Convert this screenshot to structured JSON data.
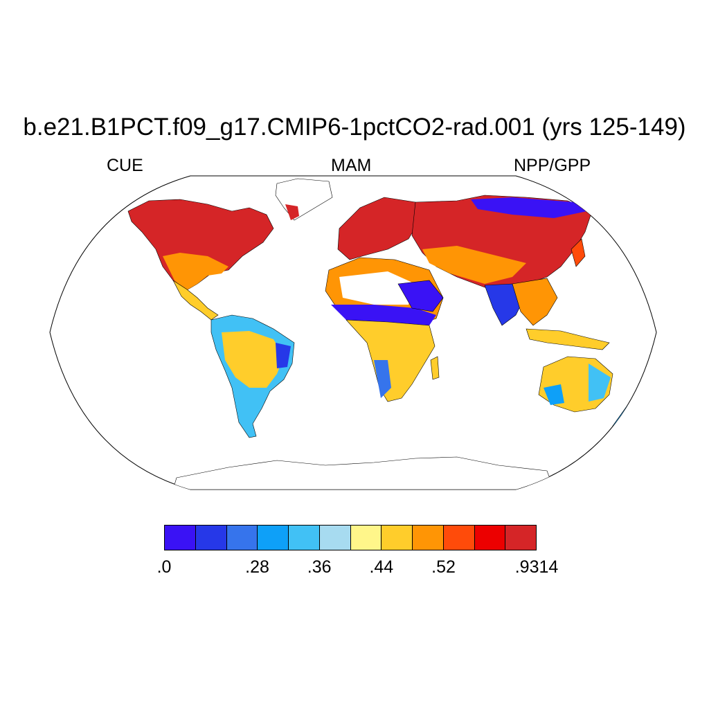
{
  "title": "b.e21.B1PCT.f09_g17.CMIP6-1pctCO2-rad.001 (yrs 125-149)",
  "subtitles": {
    "left": "CUE",
    "center": "MAM",
    "right": "NPP/GPP"
  },
  "map": {
    "projection": "Robinson",
    "field": "CUE",
    "season": "MAM",
    "ocean_color": "#ffffff",
    "coastline_color": "#000000",
    "no_data_color": "#ffffff"
  },
  "colorbar": {
    "colors": [
      "#3a12f5",
      "#2638e8",
      "#3674ec",
      "#0ea0f8",
      "#41c1f5",
      "#a7dbf0",
      "#fff68a",
      "#ffcd2b",
      "#ff9505",
      "#ff4b0a",
      "#ec0000",
      "#d52527"
    ],
    "tick_labels": [
      ".0",
      ".28",
      ".36",
      ".44",
      ".52",
      ".9314"
    ]
  }
}
